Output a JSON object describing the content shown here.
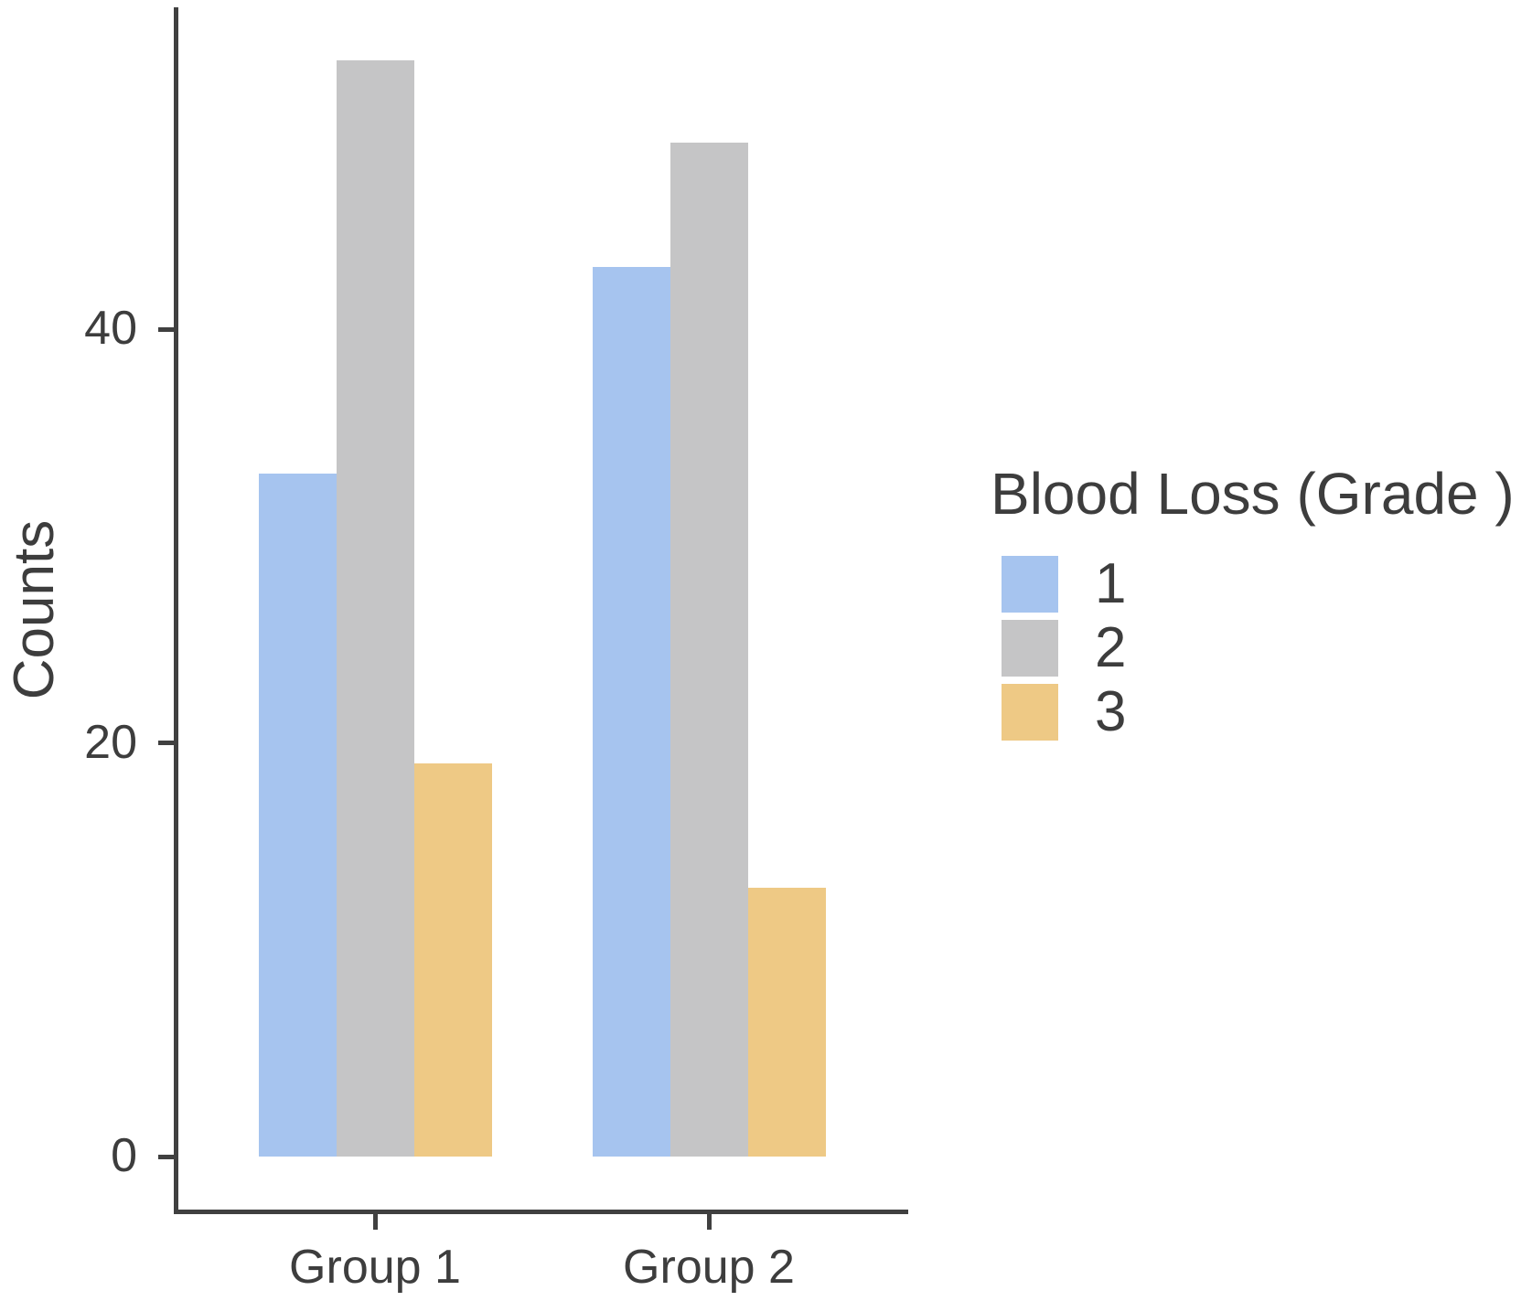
{
  "figure": {
    "background": "#ffffff",
    "axis_color": "#404040",
    "text_color": "#3d3d3d"
  },
  "chart_data": {
    "type": "bar",
    "title": "",
    "xlabel": "",
    "ylabel": "Counts",
    "categories": [
      "Group 1",
      "Group 2"
    ],
    "series": [
      {
        "name": "1",
        "color": "#a6c4ef",
        "values": [
          33,
          43
        ]
      },
      {
        "name": "2",
        "color": "#c5c5c6",
        "values": [
          53,
          49
        ]
      },
      {
        "name": "3",
        "color": "#eec985",
        "values": [
          19,
          13
        ]
      }
    ],
    "yticks": [
      0,
      20,
      40
    ],
    "ylim": [
      0,
      55.6
    ],
    "grid": false,
    "legend_title": "Blood Loss (Grade )",
    "legend_position": "right",
    "bar_style": "grouped-dodged"
  }
}
